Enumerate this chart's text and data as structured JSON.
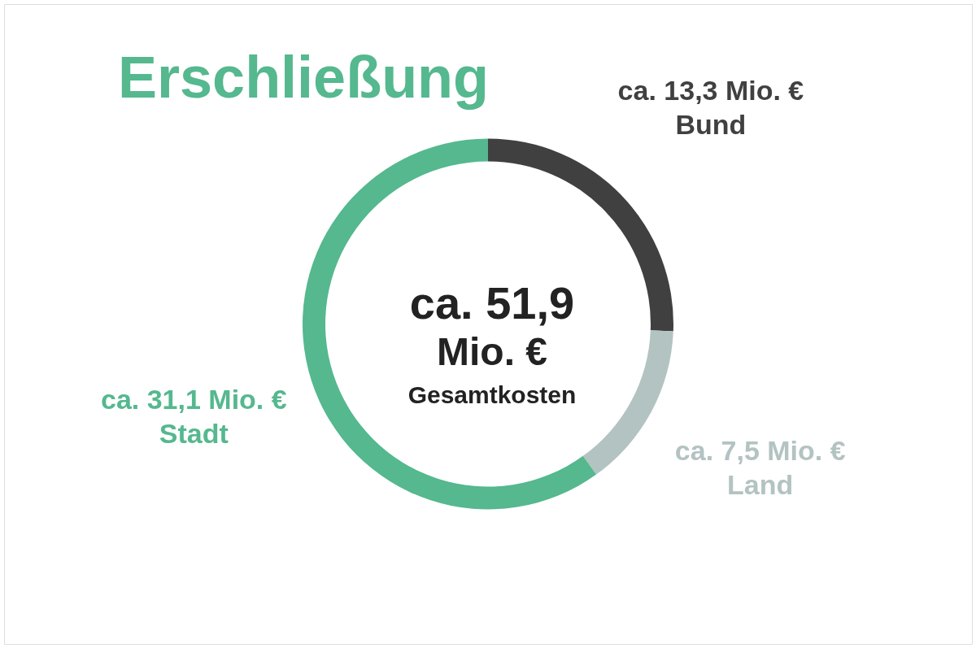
{
  "chart_data": {
    "type": "donut",
    "title": "Erschließung",
    "categories": [
      "Bund",
      "Land",
      "Stadt"
    ],
    "values": [
      13.3,
      7.5,
      31.1
    ],
    "colors": [
      "#404040",
      "#b3c3c2",
      "#55b88f"
    ],
    "value_labels": [
      "ca. 13,3 Mio. €",
      "ca. 7,5 Mio. €",
      "ca. 31,1 Mio. €"
    ],
    "annotations": [
      "ca. 51,9",
      "Mio. €",
      "Gesamtkosten"
    ],
    "legend": false
  }
}
